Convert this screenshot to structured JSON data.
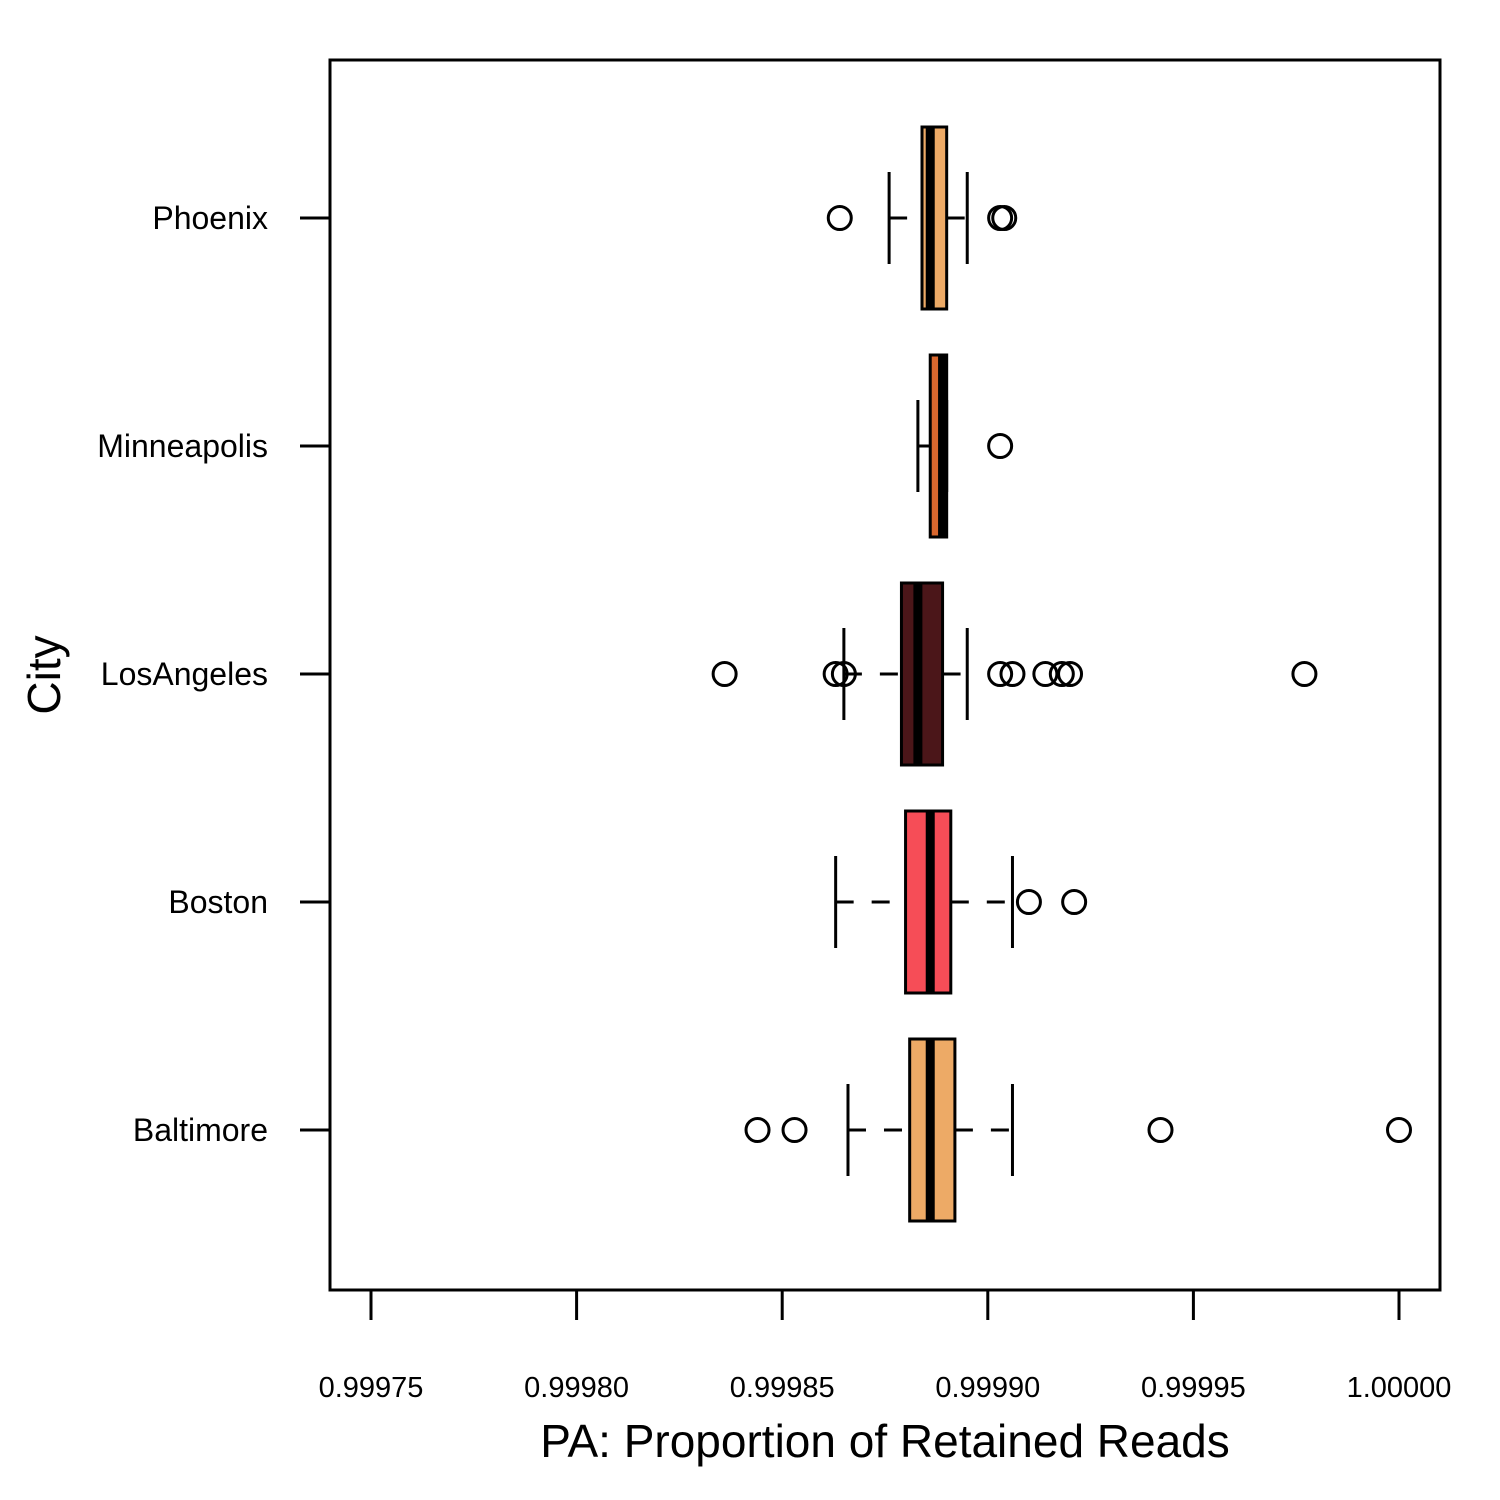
{
  "chart_data": {
    "type": "boxplot",
    "orientation": "horizontal",
    "xlabel": "PA: Proportion of Retained Reads",
    "ylabel": "City",
    "xlim": [
      0.99974,
      1.00001
    ],
    "x_ticks": [
      {
        "value": 0.99975,
        "label": "0.99975"
      },
      {
        "value": 0.9998,
        "label": "0.99980"
      },
      {
        "value": 0.99985,
        "label": "0.99985"
      },
      {
        "value": 0.9999,
        "label": "0.99990"
      },
      {
        "value": 0.99995,
        "label": "0.99995"
      },
      {
        "value": 1.0,
        "label": "1.00000"
      }
    ],
    "grid": false,
    "categories": [
      "Baltimore",
      "Boston",
      "LosAngeles",
      "Minneapolis",
      "Phoenix"
    ],
    "series": [
      {
        "category": "Baltimore",
        "color": "#EDAA66",
        "whisker_low": 0.999866,
        "q1": 0.999881,
        "median": 0.999886,
        "q3": 0.999892,
        "whisker_high": 0.999906,
        "outliers": [
          0.999844,
          0.999853,
          0.999942,
          1.0
        ]
      },
      {
        "category": "Boston",
        "color": "#F64D57",
        "whisker_low": 0.999863,
        "q1": 0.99988,
        "median": 0.999886,
        "q3": 0.999891,
        "whisker_high": 0.999906,
        "outliers": [
          0.99991,
          0.999921
        ]
      },
      {
        "category": "LosAngeles",
        "color": "#4B1619",
        "whisker_low": 0.999865,
        "q1": 0.999879,
        "median": 0.999883,
        "q3": 0.999889,
        "whisker_high": 0.999895,
        "outliers": [
          0.999836,
          0.999863,
          0.999865,
          0.999903,
          0.999906,
          0.999914,
          0.999918,
          0.99992,
          0.999977
        ]
      },
      {
        "category": "Minneapolis",
        "color": "#D9672E",
        "whisker_low": 0.999883,
        "q1": 0.999886,
        "median": 0.999889,
        "q3": 0.99989,
        "whisker_high": 0.99989,
        "outliers": [
          0.999903
        ]
      },
      {
        "category": "Phoenix",
        "color": "#EDAA66",
        "whisker_low": 0.999876,
        "q1": 0.999884,
        "median": 0.999886,
        "q3": 0.99989,
        "whisker_high": 0.999895,
        "outliers": [
          0.999864,
          0.999903,
          0.999904
        ]
      }
    ]
  }
}
